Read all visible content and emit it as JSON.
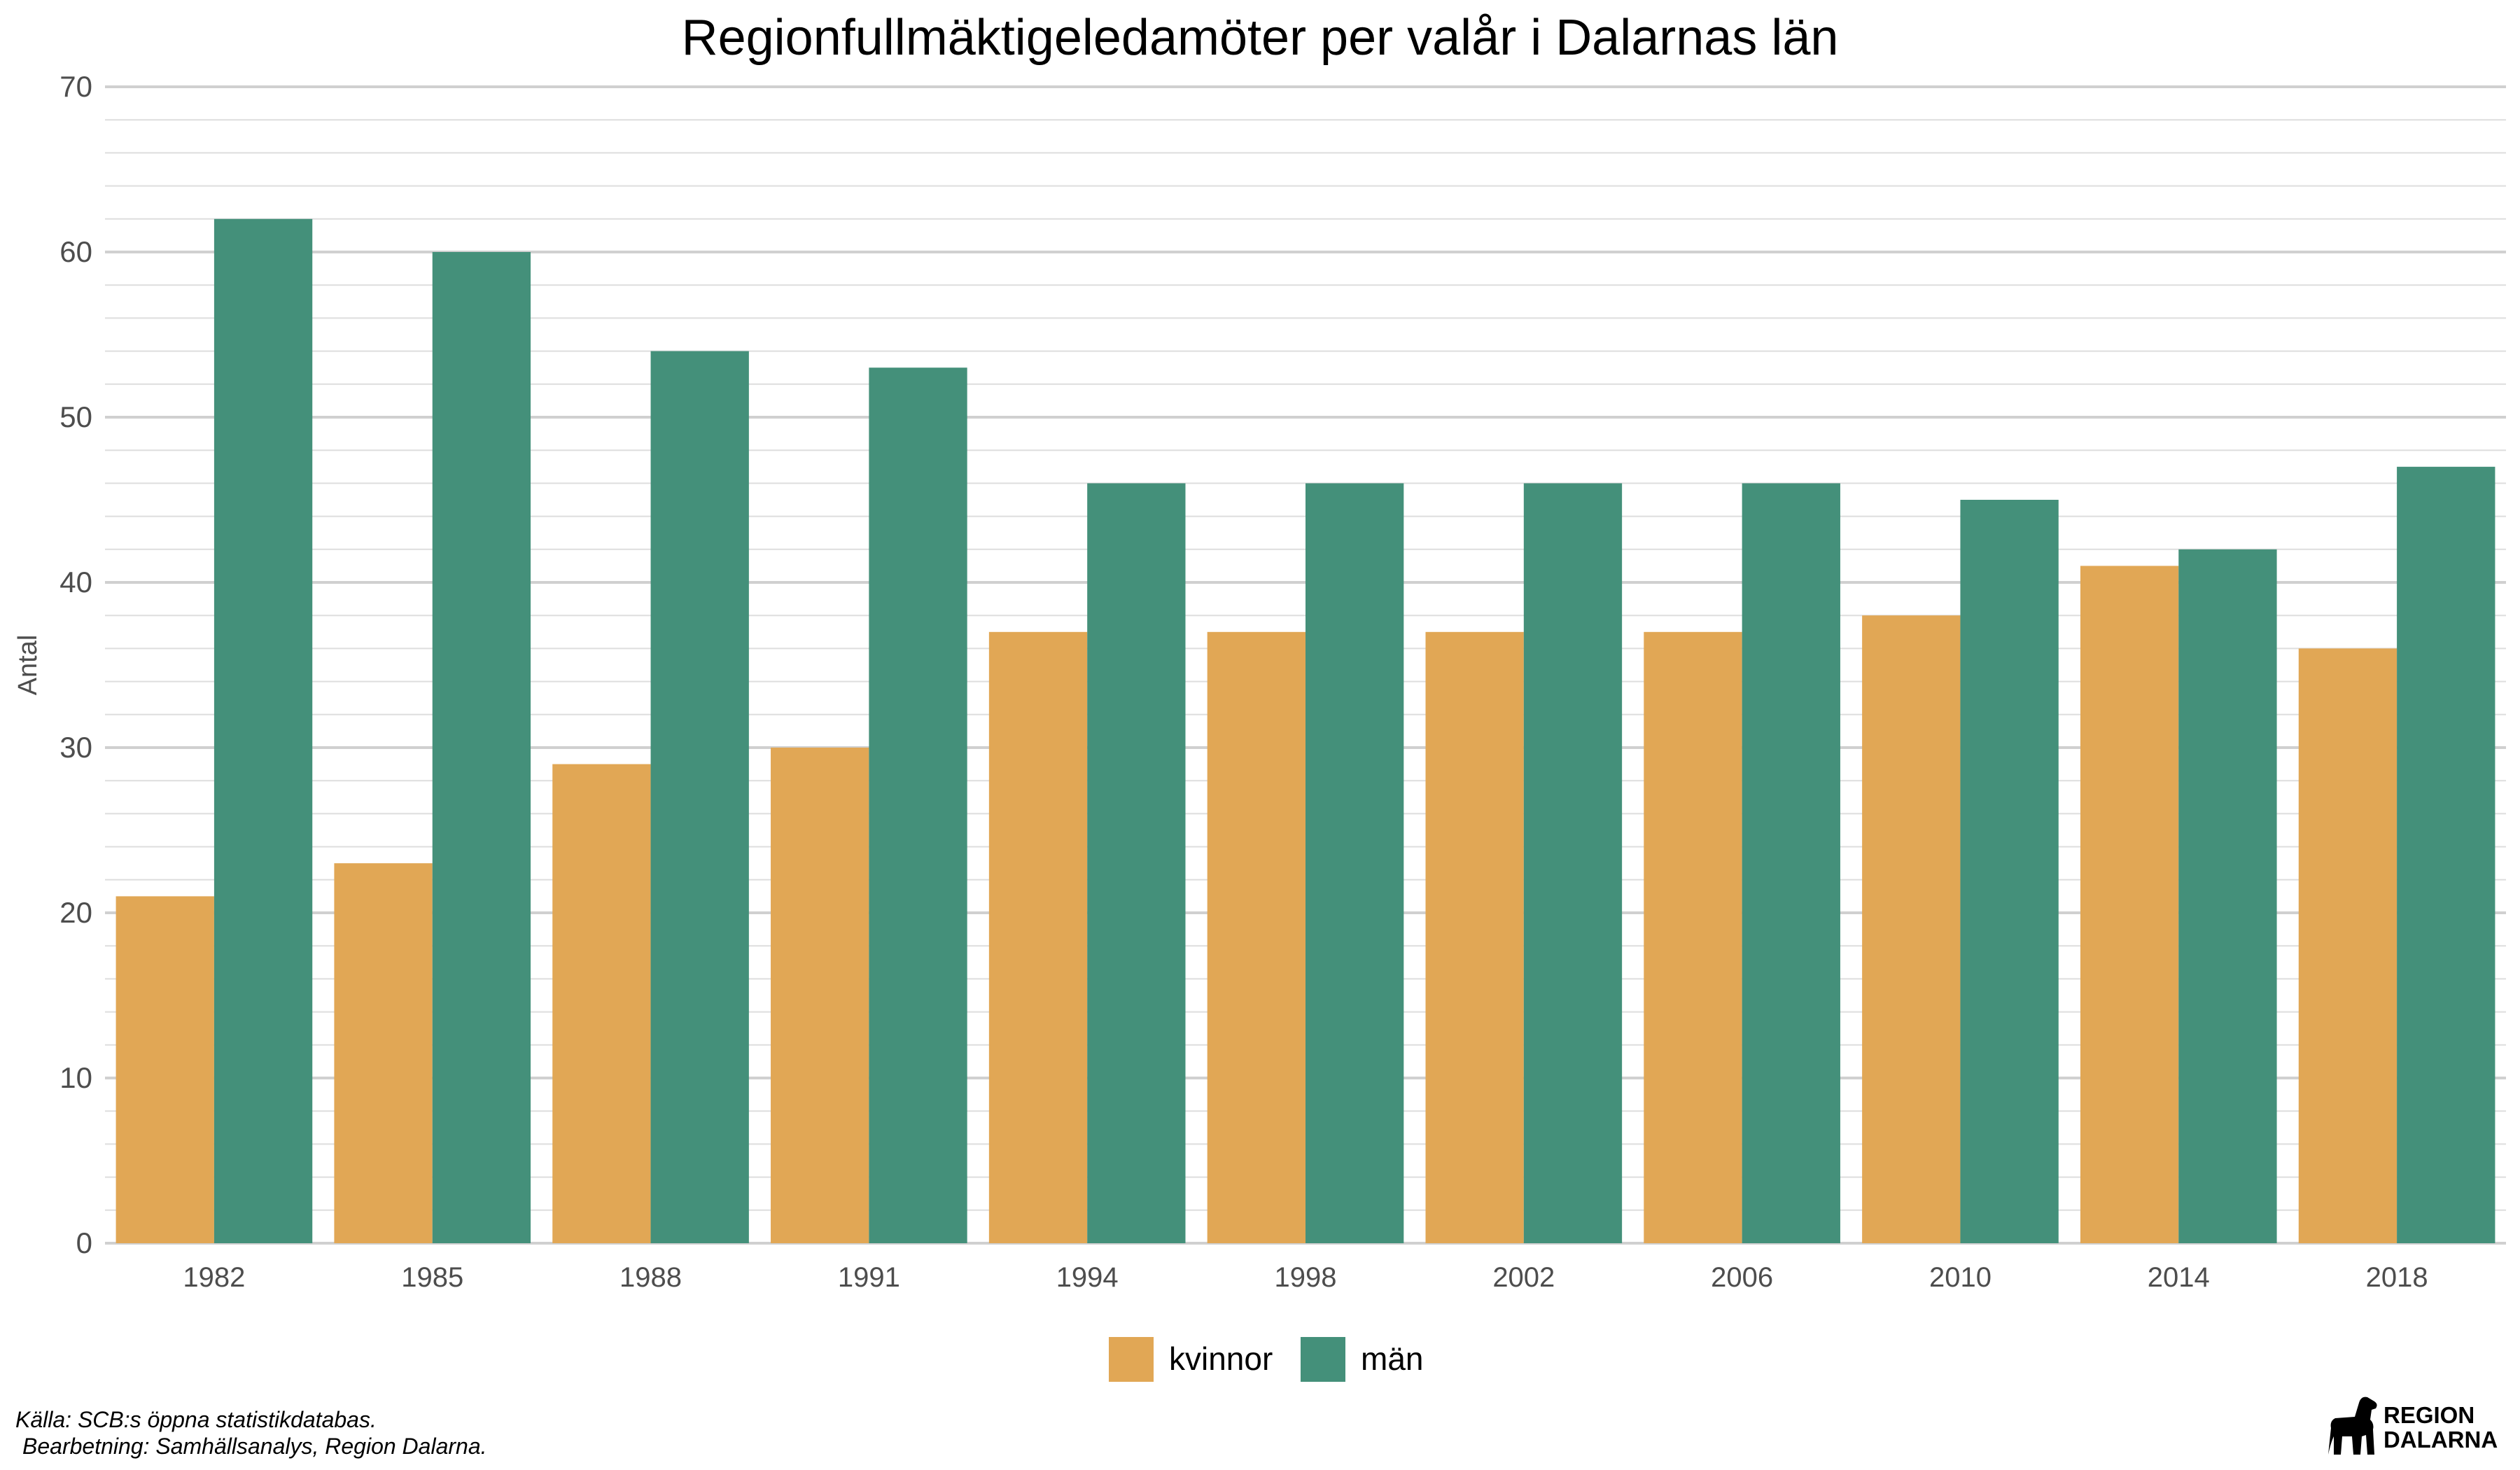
{
  "chart_data": {
    "type": "bar",
    "title": "Regionfullmäktigeledamöter per valår i Dalarnas län",
    "ylabel": "Antal",
    "xlabel": "",
    "ylim": [
      0,
      70
    ],
    "yticks": [
      "0",
      "10",
      "20",
      "30",
      "40",
      "50",
      "60",
      "70"
    ],
    "categories": [
      "1982",
      "1985",
      "1988",
      "1991",
      "1994",
      "1998",
      "2002",
      "2006",
      "2010",
      "2014",
      "2018"
    ],
    "series": [
      {
        "name": "kvinnor",
        "color": "#E1A755",
        "values": [
          21,
          23,
          29,
          30,
          37,
          37,
          37,
          37,
          38,
          41,
          36
        ]
      },
      {
        "name": "män",
        "color": "#44907A",
        "values": [
          62,
          60,
          54,
          53,
          46,
          46,
          46,
          46,
          45,
          42,
          47
        ]
      }
    ],
    "grid": true,
    "legend_position": "bottom"
  },
  "footer": {
    "source_line1": "Källa: SCB:s öppna statistikdatabas.",
    "source_line2": "Bearbetning: Samhällsanalys, Region Dalarna."
  },
  "logo": {
    "line1": "REGION",
    "line2": "DALARNA",
    "icon": "dala-horse-icon"
  }
}
